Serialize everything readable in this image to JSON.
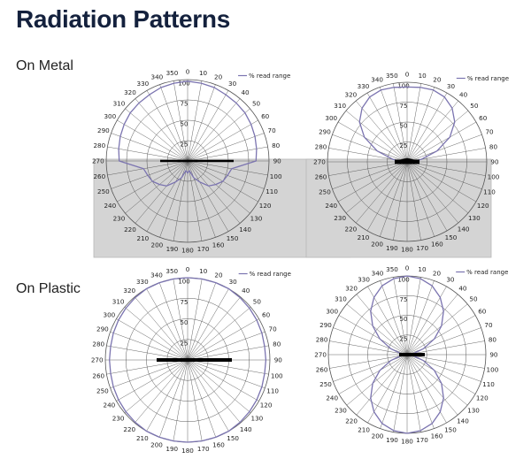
{
  "page": {
    "title": "Radiation Patterns",
    "sections": {
      "metal": "On Metal",
      "plastic": "On Plastic"
    }
  },
  "colors": {
    "curve": "#7b74b0",
    "shade": "#d4d4d4",
    "grid": "#555555",
    "text": "#222222"
  },
  "chart_data": [
    {
      "type": "polar-line",
      "section": "On Metal",
      "series": [
        {
          "name": "% read range",
          "angles": [
            0,
            10,
            20,
            30,
            40,
            50,
            60,
            70,
            80,
            90,
            100,
            110,
            120,
            130,
            140,
            150,
            160,
            170,
            180,
            190,
            200,
            210,
            220,
            230,
            240,
            250,
            260,
            270,
            280,
            290,
            300,
            310,
            320,
            330,
            340,
            350
          ],
          "values": [
            98,
            97,
            96,
            94,
            93,
            92,
            90,
            88,
            86,
            84,
            55,
            52,
            50,
            45,
            40,
            30,
            22,
            12,
            15,
            12,
            22,
            30,
            40,
            45,
            50,
            52,
            55,
            84,
            86,
            88,
            90,
            92,
            93,
            94,
            96,
            97
          ]
        }
      ],
      "radial_ticks": [
        25,
        50,
        75,
        100
      ],
      "angle_ticks": [
        0,
        10,
        20,
        30,
        40,
        50,
        60,
        70,
        80,
        90,
        100,
        110,
        120,
        130,
        140,
        150,
        160,
        170,
        180,
        190,
        200,
        210,
        220,
        230,
        240,
        250,
        260,
        270,
        280,
        290,
        300,
        310,
        320,
        330,
        340,
        350
      ],
      "shaded_half": "bottom",
      "legend_position": "top-right"
    },
    {
      "type": "polar-line",
      "section": "On Metal",
      "series": [
        {
          "name": "% read range",
          "angles": [
            0,
            10,
            20,
            30,
            40,
            50,
            60,
            70,
            80,
            90,
            100,
            110,
            120,
            130,
            140,
            150,
            160,
            170,
            180,
            190,
            200,
            210,
            220,
            230,
            240,
            250,
            260,
            270,
            280,
            290,
            300,
            310,
            320,
            330,
            340,
            350
          ],
          "values": [
            94,
            95,
            96,
            94,
            88,
            78,
            62,
            40,
            18,
            4,
            0,
            0,
            0,
            0,
            0,
            0,
            0,
            0,
            0,
            0,
            0,
            0,
            0,
            0,
            0,
            0,
            0,
            4,
            18,
            40,
            62,
            78,
            88,
            94,
            96,
            95
          ]
        }
      ],
      "radial_ticks": [
        25,
        50,
        75,
        100
      ],
      "angle_ticks": [
        0,
        10,
        20,
        30,
        40,
        50,
        60,
        70,
        80,
        90,
        100,
        110,
        120,
        130,
        140,
        150,
        160,
        170,
        180,
        190,
        200,
        210,
        220,
        230,
        240,
        250,
        260,
        270,
        280,
        290,
        300,
        310,
        320,
        330,
        340,
        350
      ],
      "shaded_half": "bottom",
      "legend_position": "top-right"
    },
    {
      "type": "polar-line",
      "section": "On Plastic",
      "series": [
        {
          "name": "% read range",
          "angles": [
            0,
            10,
            20,
            30,
            40,
            50,
            60,
            70,
            80,
            90,
            100,
            110,
            120,
            130,
            140,
            150,
            160,
            170,
            180,
            190,
            200,
            210,
            220,
            230,
            240,
            250,
            260,
            270,
            280,
            290,
            300,
            310,
            320,
            330,
            340,
            350
          ],
          "values": [
            100,
            100,
            100,
            100,
            99,
            98,
            97,
            96,
            95,
            95,
            95,
            96,
            97,
            98,
            99,
            100,
            100,
            100,
            100,
            100,
            100,
            100,
            99,
            98,
            97,
            96,
            95,
            95,
            95,
            96,
            97,
            98,
            99,
            100,
            100,
            100
          ]
        }
      ],
      "radial_ticks": [
        25,
        50,
        75,
        100
      ],
      "angle_ticks": [
        0,
        10,
        20,
        30,
        40,
        50,
        60,
        70,
        80,
        90,
        100,
        110,
        120,
        130,
        140,
        150,
        160,
        170,
        180,
        190,
        200,
        210,
        220,
        230,
        240,
        250,
        260,
        270,
        280,
        290,
        300,
        310,
        320,
        330,
        340,
        350
      ],
      "shaded_half": "none",
      "legend_position": "top-right"
    },
    {
      "type": "polar-line",
      "section": "On Plastic",
      "series": [
        {
          "name": "% read range",
          "angles": [
            0,
            10,
            20,
            30,
            40,
            50,
            60,
            70,
            80,
            90,
            100,
            110,
            120,
            130,
            140,
            150,
            160,
            170,
            180,
            190,
            200,
            210,
            220,
            230,
            240,
            250,
            260,
            270,
            280,
            290,
            300,
            310,
            320,
            330,
            340,
            350
          ],
          "values": [
            100,
            98,
            93,
            84,
            72,
            57,
            40,
            22,
            8,
            3,
            8,
            22,
            40,
            57,
            72,
            84,
            93,
            98,
            100,
            98,
            93,
            84,
            72,
            57,
            40,
            22,
            8,
            3,
            8,
            22,
            40,
            57,
            72,
            84,
            93,
            98
          ]
        }
      ],
      "radial_ticks": [
        25,
        50,
        75,
        100
      ],
      "angle_ticks": [
        0,
        10,
        20,
        30,
        40,
        50,
        60,
        70,
        80,
        90,
        100,
        110,
        120,
        130,
        140,
        150,
        160,
        170,
        180,
        190,
        200,
        210,
        220,
        230,
        240,
        250,
        260,
        270,
        280,
        290,
        300,
        310,
        320,
        330,
        340,
        350
      ],
      "shaded_half": "none",
      "legend_position": "top-right"
    }
  ]
}
